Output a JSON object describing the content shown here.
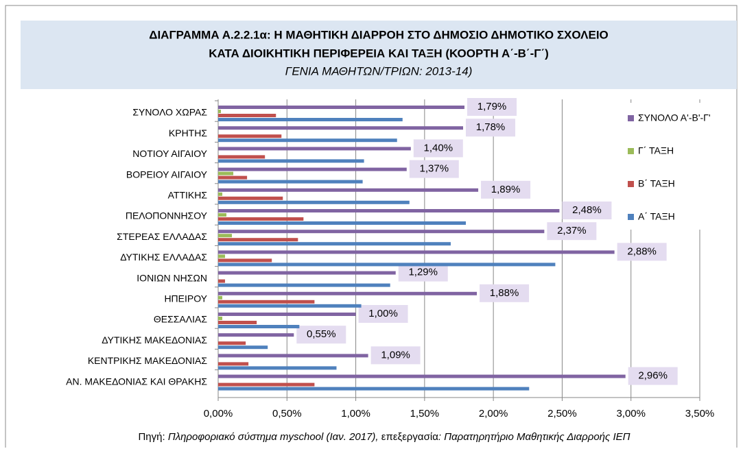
{
  "chart_data": {
    "type": "barh",
    "title": [
      "ΔΙΑΓΡΑΜΜΑ Α.2.2.1α: Η  ΜΑΘΗΤΙΚΗ ΔΙΑΡΡΟΗ ΣΤΟ ΔΗΜΟΣΙΟ ΔΗΜΟΤΙΚΟ ΣΧΟΛΕΙΟ",
      "ΚΑΤΑ ΔΙΟΙΚΗΤΙΚΗ ΠΕΡΙΦΕΡΕΙΑ ΚΑΙ ΤΑΞΗ (ΚΟΟΡΤΗ Α΄-Β΄-Γ΄)"
    ],
    "subtitle": "ΓΕΝΙΑ ΜΑΘΗΤΩΝ/ΤΡΙΩΝ: 2013-14)",
    "source": [
      "Πηγή: ",
      "Πληροφοριακό σύστημα myschool (Ιαν. 2017),",
      " επεξεργασία",
      ": Παρατηρητήριο Μαθητικής Διαρροής ΙΕΠ"
    ],
    "categories": [
      "ΣΥΝΟΛΟ ΧΩΡΑΣ",
      "ΚΡΗΤΗΣ",
      "ΝΟΤΙΟΥ ΑΙΓΑΙΟΥ",
      "ΒΟΡΕΙΟΥ ΑΙΓΑΙΟΥ",
      "ΑΤΤΙΚΗΣ",
      "ΠΕΛΟΠΟΝΝΗΣΟΥ",
      "ΣΤΕΡΕΑΣ ΕΛΛΑΔΑΣ",
      "ΔΥΤΙΚΗΣ ΕΛΛΑΔΑΣ",
      "ΙΟΝΙΩΝ ΝΗΣΩΝ",
      "ΗΠΕΙΡΟΥ",
      "ΘΕΣΣΑΛΙΑΣ",
      "ΔΥΤΙΚΗΣ ΜΑΚΕΔΟΝΙΑΣ",
      "ΚΕΝΤΡΙΚΗΣ ΜΑΚΕΔΟΝΙΑΣ",
      "ΑΝ. ΜΑΚΕΔΟΝΙΑΣ ΚΑΙ ΘΡΑΚΗΣ"
    ],
    "series": [
      {
        "name": "ΣΥΝΟΛΟ Α'-Β'-Γ'",
        "color": "#8064a2",
        "values": [
          1.79,
          1.78,
          1.4,
          1.37,
          1.89,
          2.48,
          2.37,
          2.88,
          1.29,
          1.88,
          1.0,
          0.55,
          1.09,
          2.96
        ],
        "value_labels": [
          "1,79%",
          "1,78%",
          "1,40%",
          "1,37%",
          "1,89%",
          "2,48%",
          "2,37%",
          "2,88%",
          "1,29%",
          "1,88%",
          "1,00%",
          "0,55%",
          "1,09%",
          "2,96%"
        ]
      },
      {
        "name": "Γ΄ ΤΑΞΗ",
        "color": "#9bbb59",
        "values": [
          0.02,
          0,
          0,
          0.11,
          0.03,
          0.06,
          0.1,
          0.05,
          0,
          0.03,
          0.03,
          0,
          0,
          0
        ]
      },
      {
        "name": "Β΄ ΤΑΞΗ",
        "color": "#c0504d",
        "values": [
          0.42,
          0.46,
          0.34,
          0.21,
          0.47,
          0.62,
          0.58,
          0.39,
          0.05,
          0.7,
          0.28,
          0.2,
          0.22,
          0.7
        ]
      },
      {
        "name": "Α΄ ΤΑΞΗ",
        "color": "#4f81bd",
        "values": [
          1.34,
          1.3,
          1.06,
          1.05,
          1.39,
          1.8,
          1.69,
          2.45,
          1.25,
          1.04,
          0.59,
          0.36,
          0.86,
          2.26
        ]
      }
    ],
    "xlim": [
      0,
      3.5
    ],
    "xticks": [
      {
        "value": 0,
        "label": "0,00%"
      },
      {
        "value": 0.5,
        "label": "0,50%"
      },
      {
        "value": 1,
        "label": "1,00%"
      },
      {
        "value": 1.5,
        "label": "1,50%"
      },
      {
        "value": 2,
        "label": "2,00%"
      },
      {
        "value": 2.5,
        "label": "2,50%"
      },
      {
        "value": 3,
        "label": "3,00%"
      },
      {
        "value": 3.5,
        "label": "3,50%"
      }
    ],
    "grid": true,
    "legend": "right"
  }
}
